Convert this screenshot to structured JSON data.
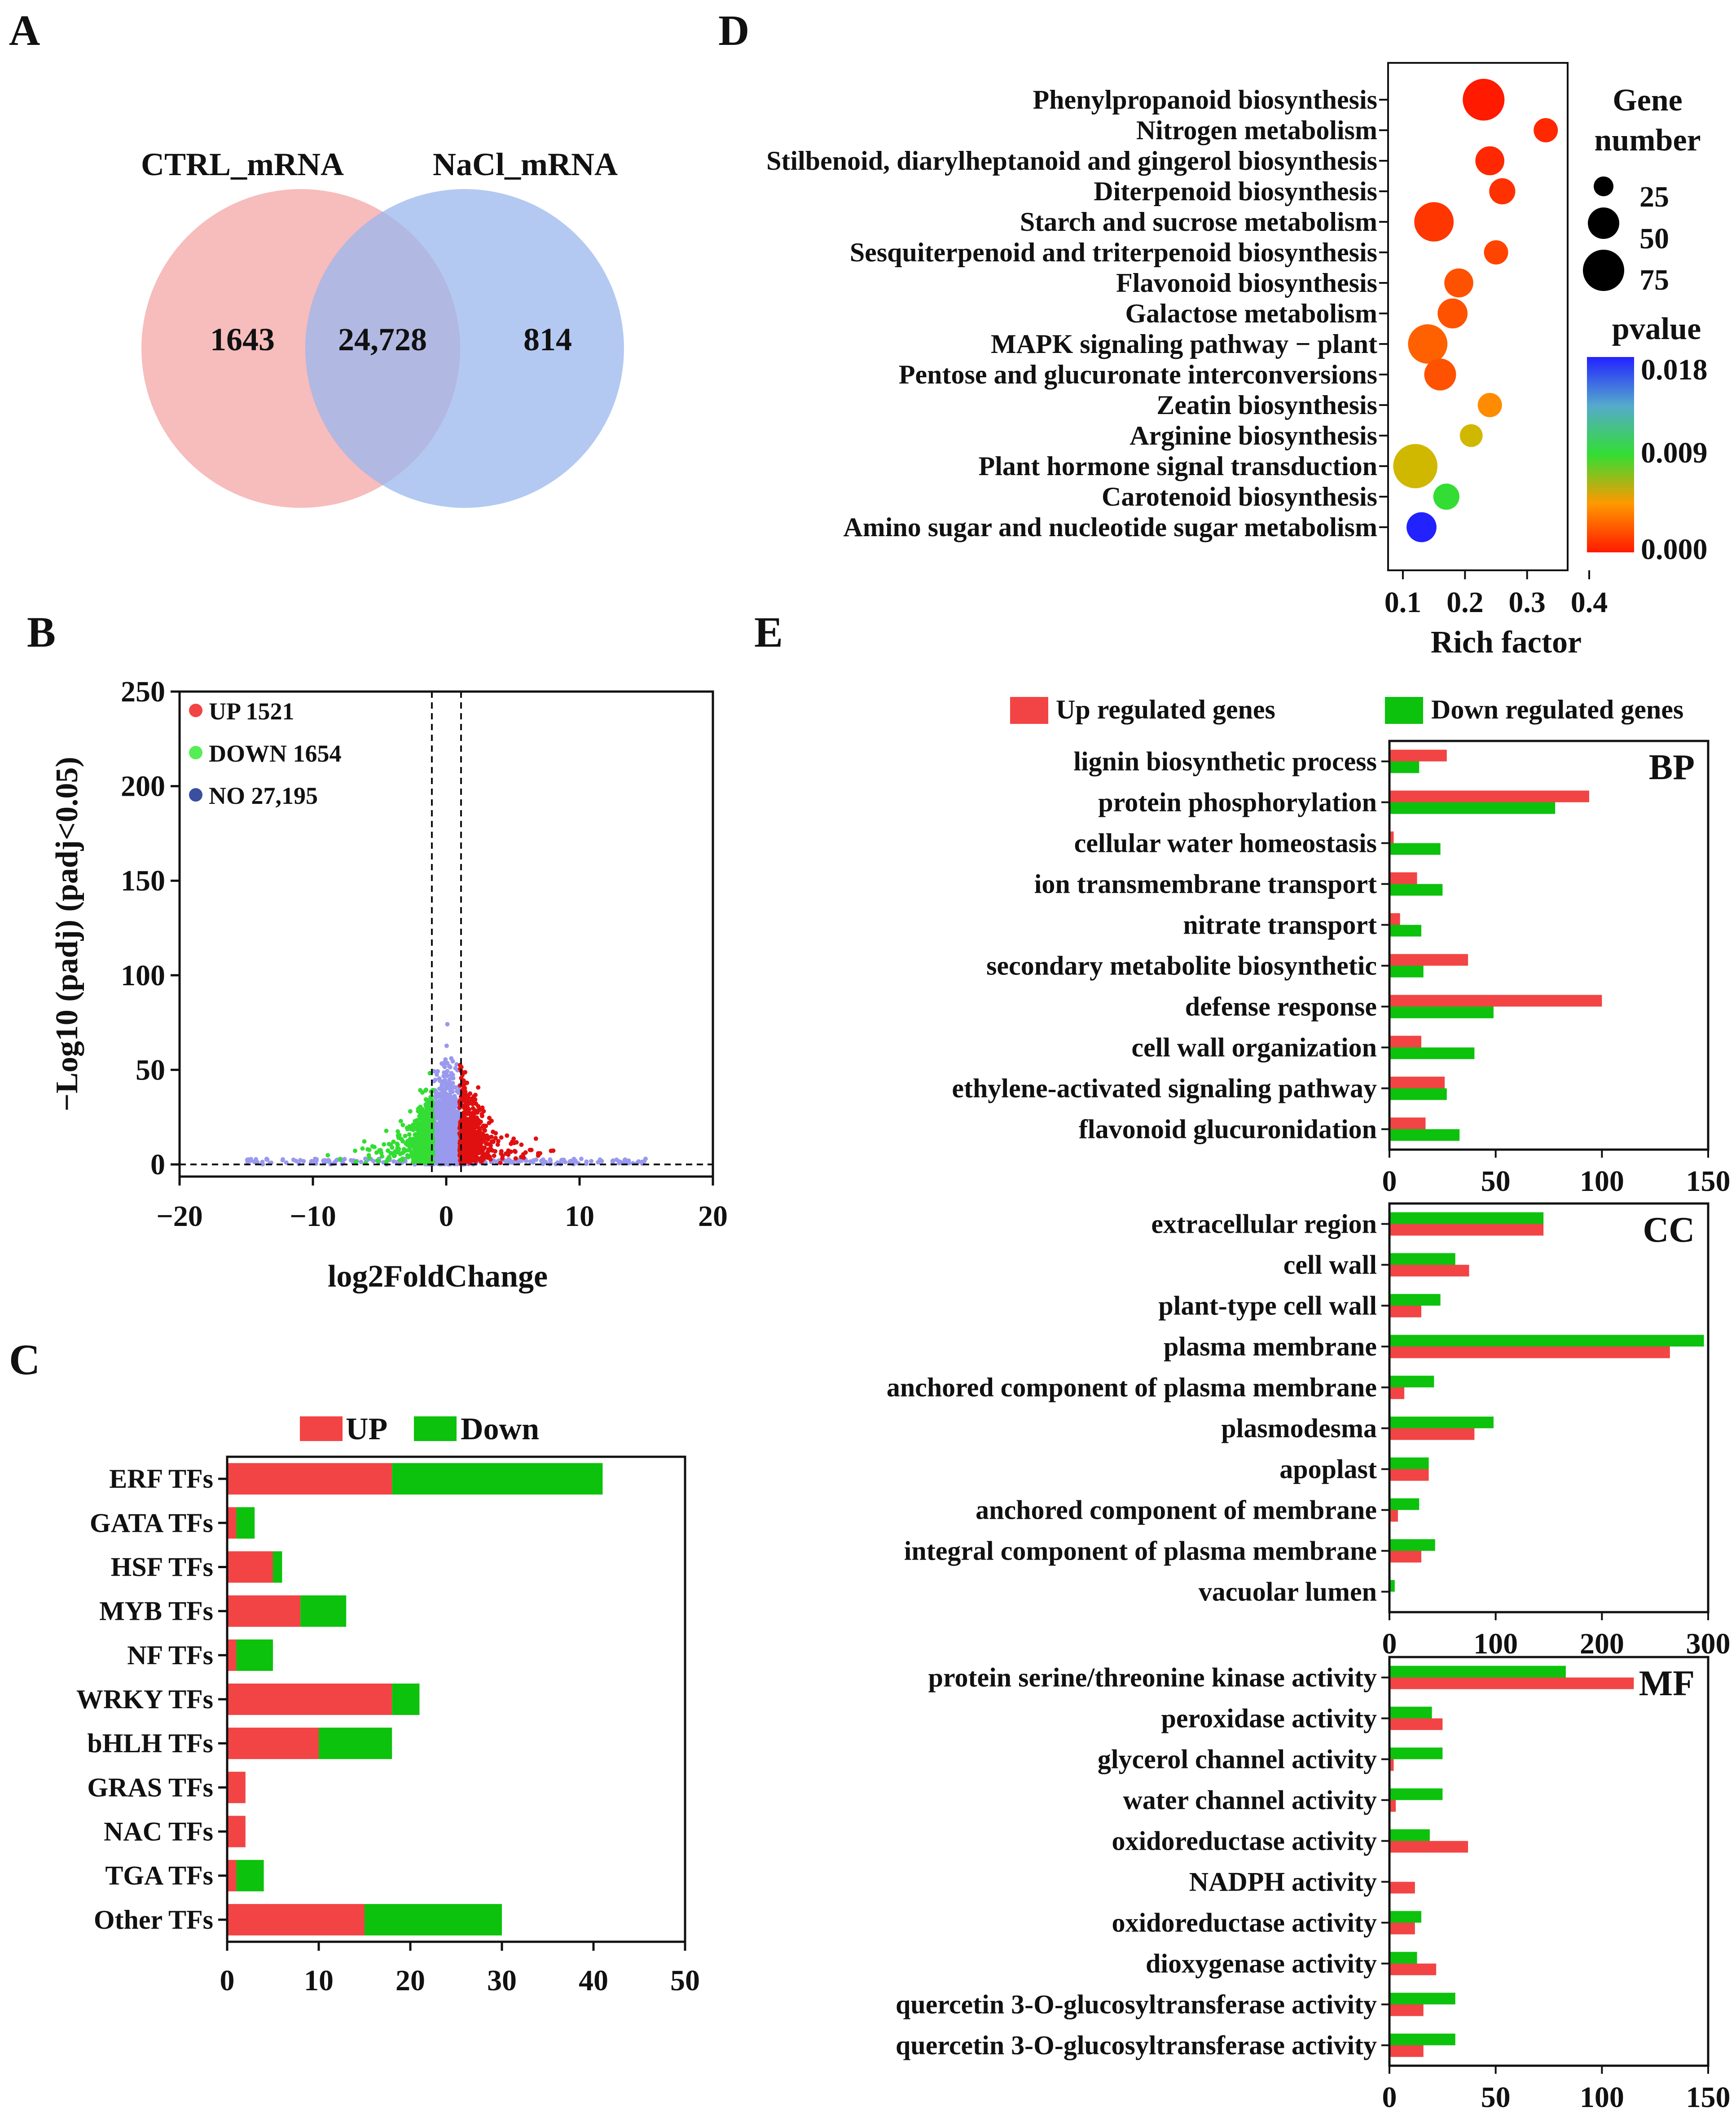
{
  "colors": {
    "up": "#f24444",
    "down": "#0cc20c",
    "ctrl_circle": "#f4a6a6",
    "nacl_circle": "#9ab7ee",
    "volcano_up": "#e01010",
    "volcano_down": "#33dd33",
    "volcano_no": "#9999ee",
    "pvalue_low": "#ff1a00",
    "pvalue_mid": "#33dd33",
    "pvalue_high": "#2222ff"
  },
  "panels": {
    "A": {
      "letter": "A",
      "sets": [
        {
          "name": "CTRL_mRNA",
          "unique": "1643"
        },
        {
          "name": "NaCl_mRNA",
          "unique": "814"
        }
      ],
      "overlap": "24,728"
    },
    "B": {
      "letter": "B",
      "ylabel": "−Log10 (padj) (padj<0.05)",
      "xlabel": "log2FoldChange",
      "xticks": [
        "−20",
        "−10",
        "0",
        "10",
        "20"
      ],
      "yticks": [
        "0",
        "50",
        "100",
        "150",
        "200",
        "250"
      ],
      "legend": [
        {
          "label": "UP 1521",
          "color": "#f24444"
        },
        {
          "label": "DOWN 1654",
          "color": "#55ee55"
        },
        {
          "label": "NO 27,195",
          "color": "#3a4fa0"
        }
      ]
    },
    "C": {
      "letter": "C",
      "legend_up": "UP",
      "legend_down": "Down",
      "xticks": [
        "0",
        "10",
        "20",
        "30",
        "40",
        "50"
      ]
    },
    "D": {
      "letter": "D",
      "xlabel": "Rich factor",
      "xticks": [
        "0.1",
        "0.2",
        "0.3",
        "0.4"
      ],
      "size_legend_title_1": "Gene",
      "size_legend_title_2": "number",
      "size_legend_values": [
        "25",
        "50",
        "75"
      ],
      "color_legend_title": "pvalue",
      "color_legend_values": [
        "0.018",
        "0.009",
        "0.000"
      ]
    },
    "E": {
      "letter": "E",
      "legend_up": "Up regulated genes",
      "legend_down": "Down regulated genes",
      "bp_label": "BP",
      "cc_label": "CC",
      "mf_label": "MF",
      "bp_xticks": [
        "0",
        "50",
        "100",
        "150"
      ],
      "cc_xticks": [
        "0",
        "100",
        "200",
        "300"
      ],
      "mf_xticks": [
        "0",
        "50",
        "100",
        "150"
      ]
    }
  },
  "chart_data": [
    {
      "panel": "A",
      "type": "venn",
      "sets": [
        "CTRL_mRNA",
        "NaCl_mRNA"
      ],
      "values": {
        "CTRL_mRNA_only": 1643,
        "shared": 24728,
        "NaCl_mRNA_only": 814
      }
    },
    {
      "panel": "B",
      "type": "scatter",
      "xlabel": "log2FoldChange",
      "ylabel": "−Log10 (padj) (padj<0.05)",
      "xlim": [
        -20,
        20
      ],
      "ylim": [
        0,
        250
      ],
      "thresholds": {
        "log2fc": [
          -1,
          1
        ],
        "padj": 0.05
      },
      "series": [
        {
          "name": "UP",
          "count": 1521
        },
        {
          "name": "DOWN",
          "count": 1654
        },
        {
          "name": "NO",
          "count": 27195
        }
      ]
    },
    {
      "panel": "C",
      "type": "bar",
      "orientation": "horizontal",
      "stacked": true,
      "categories": [
        "ERF TFs",
        "GATA TFs",
        "HSF TFs",
        "MYB TFs",
        "NF TFs",
        "WRKY TFs",
        "bHLH TFs",
        "GRAS TFs",
        "NAC TFs",
        "TGA TFs",
        "Other TFs"
      ],
      "series": [
        {
          "name": "UP",
          "values": [
            18,
            1,
            5,
            8,
            1,
            18,
            10,
            2,
            2,
            1,
            15
          ]
        },
        {
          "name": "Down",
          "values": [
            23,
            2,
            1,
            5,
            4,
            3,
            8,
            0,
            0,
            3,
            15
          ]
        }
      ],
      "xlim": [
        0,
        50
      ]
    },
    {
      "panel": "D",
      "type": "scatter",
      "xlabel": "Rich factor",
      "xlim": [
        0.1,
        0.4
      ],
      "size_legend": "Gene number",
      "color_legend": "pvalue",
      "color_range": [
        0.0,
        0.018
      ],
      "points": [
        {
          "pathway": "Phenylpropanoid biosynthesis",
          "rich_factor": 0.23,
          "gene_number": 52,
          "pvalue": 0.0
        },
        {
          "pathway": "Nitrogen metabolism",
          "rich_factor": 0.33,
          "gene_number": 12,
          "pvalue": 0.0005
        },
        {
          "pathway": "Stilbenoid, diarylheptanoid and gingerol biosynthesis",
          "rich_factor": 0.24,
          "gene_number": 20,
          "pvalue": 0.0005
        },
        {
          "pathway": "Diterpenoid biosynthesis",
          "rich_factor": 0.26,
          "gene_number": 15,
          "pvalue": 0.0008
        },
        {
          "pathway": "Starch and sucrose metabolism",
          "rich_factor": 0.15,
          "gene_number": 45,
          "pvalue": 0.001
        },
        {
          "pathway": "Sesquiterpenoid and triterpenoid biosynthesis",
          "rich_factor": 0.25,
          "gene_number": 12,
          "pvalue": 0.0015
        },
        {
          "pathway": "Flavonoid biosynthesis",
          "rich_factor": 0.19,
          "gene_number": 20,
          "pvalue": 0.002
        },
        {
          "pathway": "Galactose metabolism",
          "rich_factor": 0.18,
          "gene_number": 22,
          "pvalue": 0.002
        },
        {
          "pathway": "MAPK signaling pathway − plant",
          "rich_factor": 0.14,
          "gene_number": 45,
          "pvalue": 0.0025
        },
        {
          "pathway": "Pentose and glucuronate interconversions",
          "rich_factor": 0.16,
          "gene_number": 26,
          "pvalue": 0.002
        },
        {
          "pathway": "Zeatin biosynthesis",
          "rich_factor": 0.24,
          "gene_number": 12,
          "pvalue": 0.004
        },
        {
          "pathway": "Arginine biosynthesis",
          "rich_factor": 0.21,
          "gene_number": 10,
          "pvalue": 0.006
        },
        {
          "pathway": "Plant hormone signal transduction",
          "rich_factor": 0.12,
          "gene_number": 60,
          "pvalue": 0.006
        },
        {
          "pathway": "Carotenoid biosynthesis",
          "rich_factor": 0.17,
          "gene_number": 15,
          "pvalue": 0.009
        },
        {
          "pathway": "Amino sugar and nucleotide sugar metabolism",
          "rich_factor": 0.13,
          "gene_number": 22,
          "pvalue": 0.018
        }
      ]
    },
    {
      "panel": "E",
      "ontology": "BP",
      "type": "bar",
      "orientation": "horizontal",
      "categories": [
        "lignin biosynthetic process",
        "protein phosphorylation",
        "cellular water homeostasis",
        "ion transmembrane transport",
        "nitrate transport",
        "secondary metabolite biosynthetic",
        "defense response",
        "cell wall organization",
        "ethylene-activated signaling pathway",
        "flavonoid glucuronidation"
      ],
      "series": [
        {
          "name": "Up regulated genes",
          "values": [
            27,
            94,
            2,
            13,
            5,
            37,
            100,
            15,
            26,
            17
          ]
        },
        {
          "name": "Down regulated genes",
          "values": [
            14,
            78,
            24,
            25,
            15,
            16,
            49,
            40,
            27,
            33
          ]
        }
      ],
      "xlim": [
        0,
        150
      ]
    },
    {
      "panel": "E",
      "ontology": "CC",
      "type": "bar",
      "orientation": "horizontal",
      "categories": [
        "extracellular region",
        "cell wall",
        "plant-type cell wall",
        "plasma membrane",
        "anchored component of plasma membrane",
        "plasmodesma",
        "apoplast",
        "anchored component of membrane",
        "integral component of plasma membrane",
        "vacuolar lumen"
      ],
      "series": [
        {
          "name": "Down regulated genes",
          "values": [
            145,
            62,
            48,
            296,
            42,
            98,
            37,
            28,
            43,
            5
          ]
        },
        {
          "name": "Up regulated genes",
          "values": [
            145,
            75,
            30,
            264,
            14,
            80,
            37,
            8,
            30,
            0
          ]
        }
      ],
      "xlim": [
        0,
        300
      ]
    },
    {
      "panel": "E",
      "ontology": "MF",
      "type": "bar",
      "orientation": "horizontal",
      "categories": [
        "protein serine/threonine kinase activity",
        "peroxidase activity",
        "glycerol channel activity",
        "water channel activity",
        "oxidoreductase activity",
        "NADPH activity",
        "oxidoreductase activity",
        "dioxygenase activity",
        "quercetin 3-O-glucosyltransferase activity",
        "quercetin 3-O-glucosyltransferase activity"
      ],
      "series": [
        {
          "name": "Down regulated genes",
          "values": [
            83,
            20,
            25,
            25,
            19,
            0,
            15,
            13,
            31,
            31
          ]
        },
        {
          "name": "Up regulated genes",
          "values": [
            115,
            25,
            2,
            3,
            37,
            12,
            12,
            22,
            16,
            16
          ]
        }
      ],
      "xlim": [
        0,
        150
      ]
    }
  ]
}
